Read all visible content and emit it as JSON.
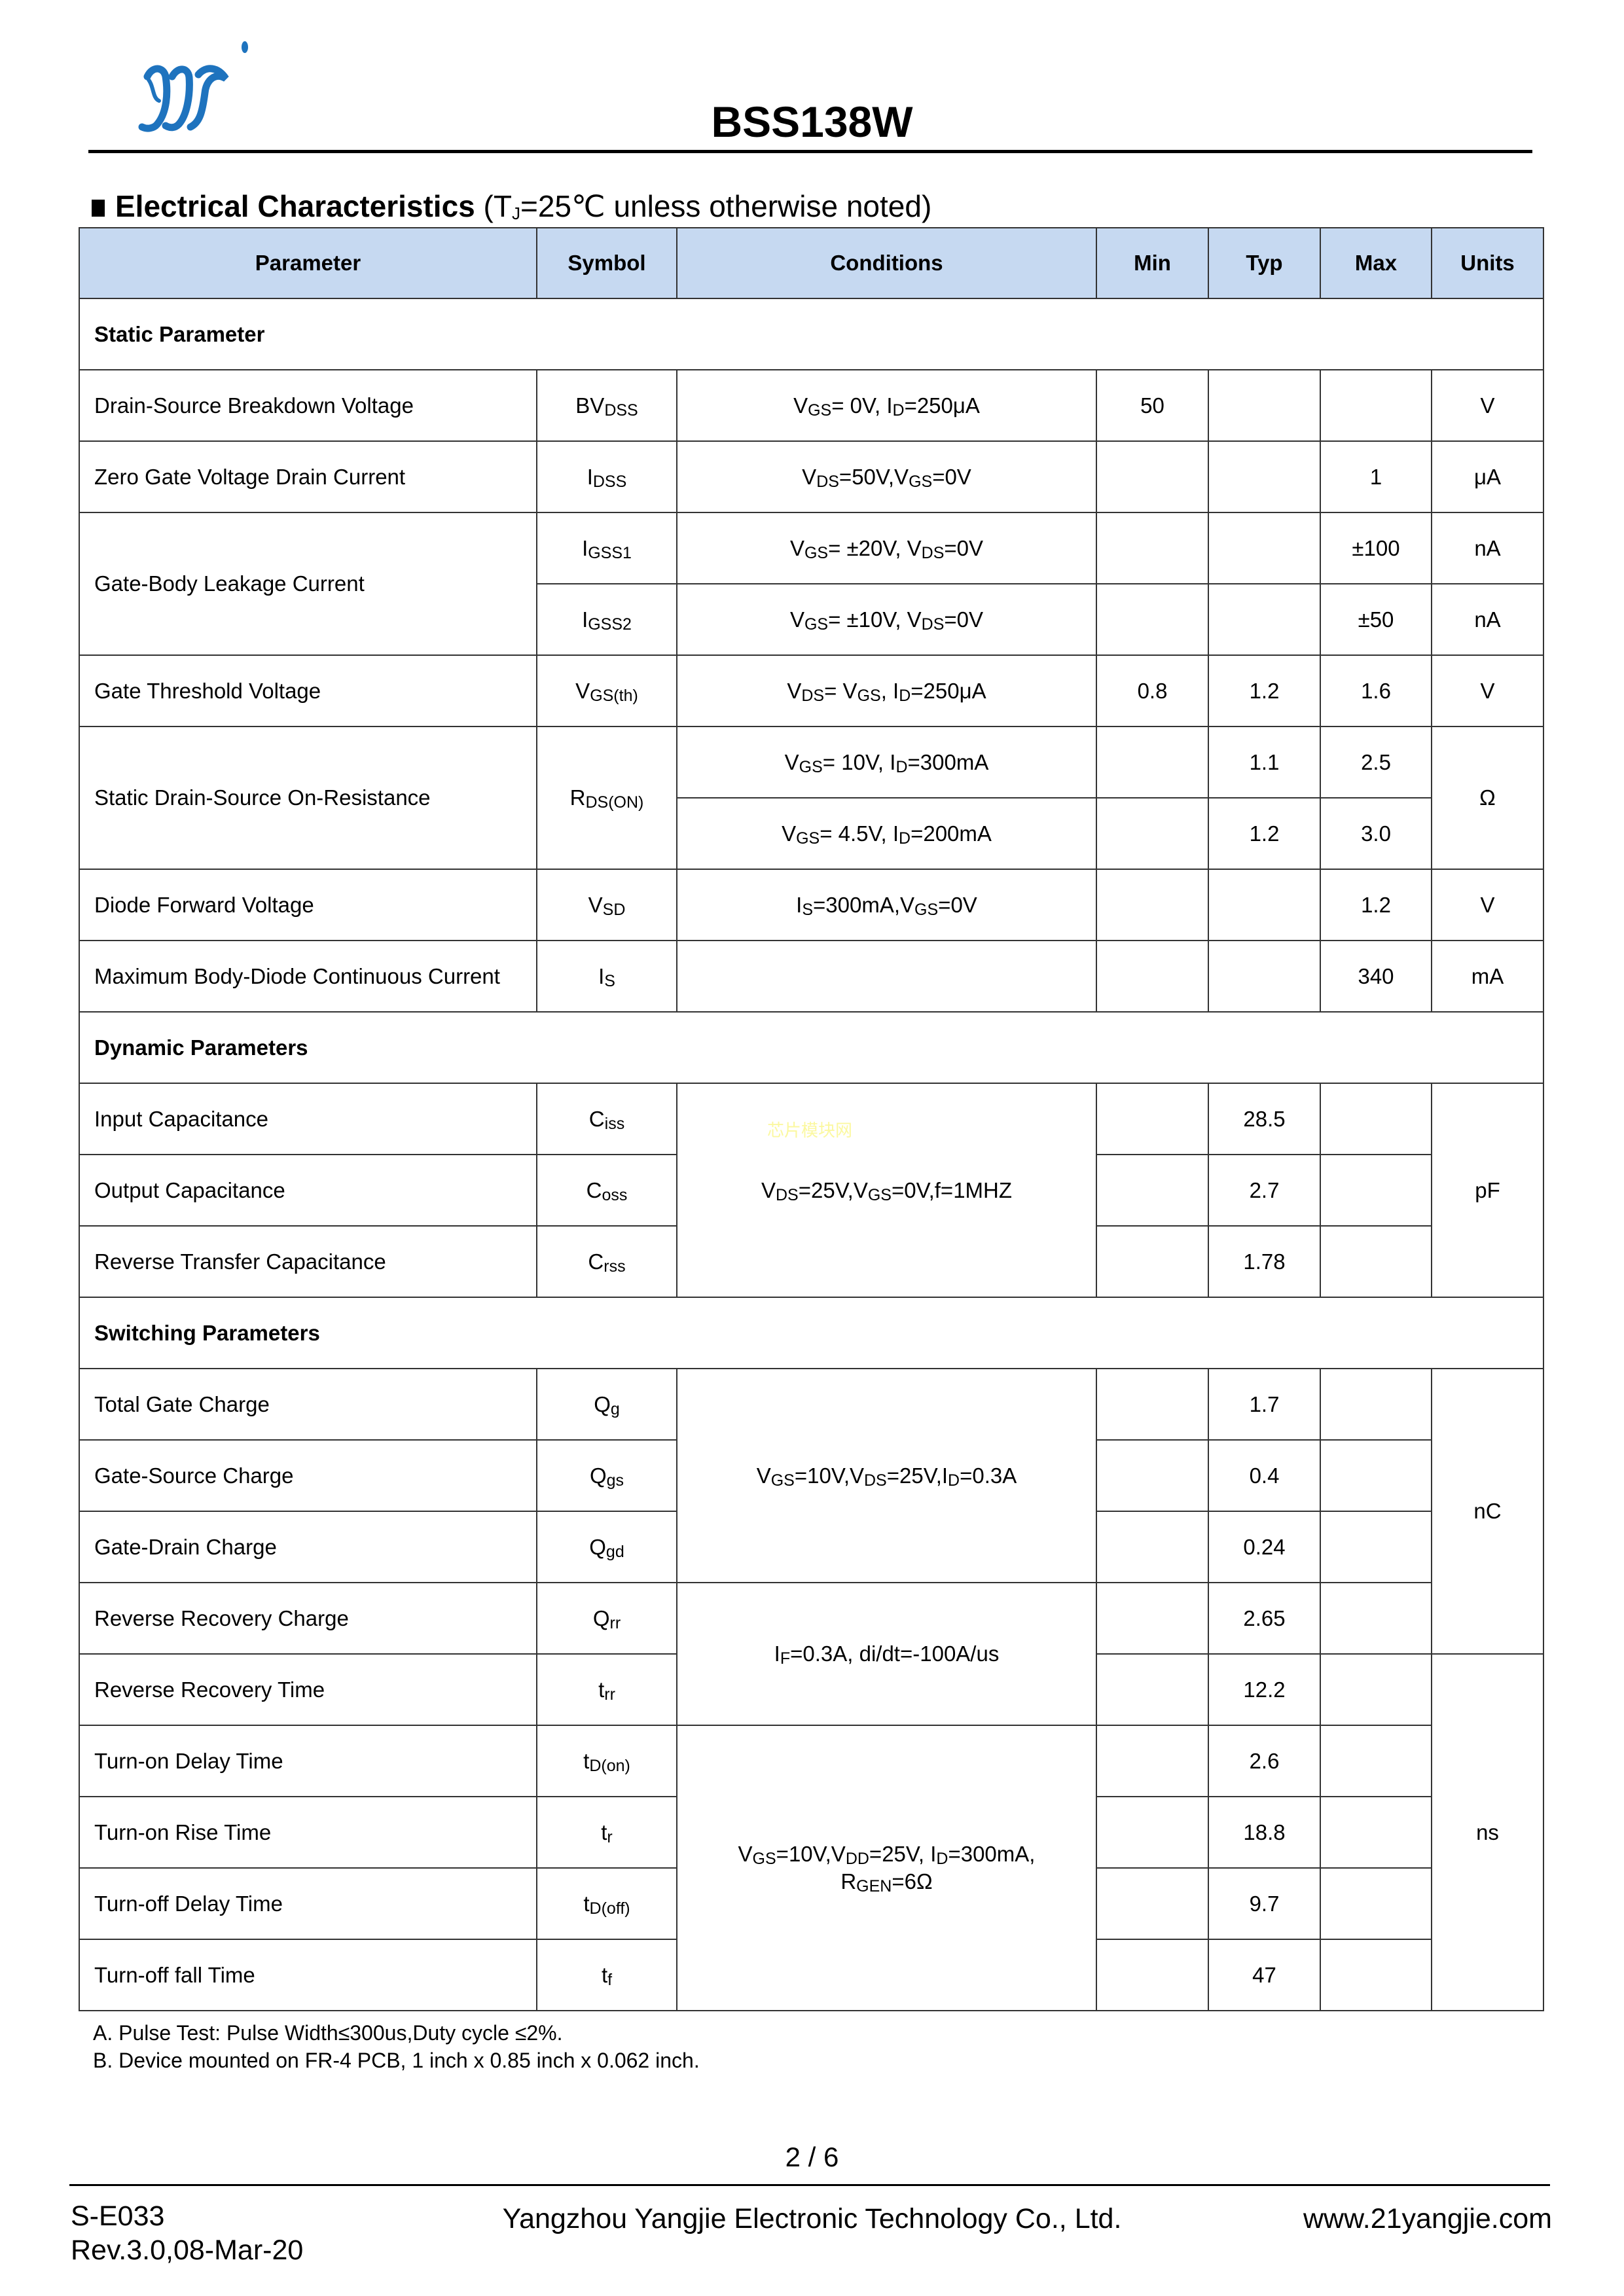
{
  "header": {
    "title": "BSS138W",
    "logo_text": "YJ",
    "brand_color": "#1E73BE"
  },
  "section": {
    "title": "Electrical Characteristics",
    "condition_prefix": "(T",
    "condition_sub": "J",
    "condition_suffix": "=25℃ unless otherwise noted)"
  },
  "table": {
    "header_bg": "#C6D9F1",
    "columns": [
      "Parameter",
      "Symbol",
      "Conditions",
      "Min",
      "Typ",
      "Max",
      "Units"
    ],
    "rows": [
      [
        {
          "t": "Static Parameter",
          "cs": 7,
          "k": "section"
        }
      ],
      [
        {
          "t": "Drain-Source Breakdown Voltage",
          "k": "param"
        },
        {
          "t": "BV_{DSS}"
        },
        {
          "t": "V_{GS}= 0V, I_{D}=250μA"
        },
        {
          "t": "50"
        },
        {
          "t": ""
        },
        {
          "t": ""
        },
        {
          "t": "V"
        }
      ],
      [
        {
          "t": "Zero Gate Voltage Drain Current",
          "k": "param"
        },
        {
          "t": "I_{DSS}"
        },
        {
          "t": "V_{DS}=50V,V_{GS}=0V"
        },
        {
          "t": ""
        },
        {
          "t": ""
        },
        {
          "t": "1"
        },
        {
          "t": "μA"
        }
      ],
      [
        {
          "t": "Gate-Body Leakage Current",
          "k": "param",
          "rs": 2
        },
        {
          "t": "I_{GSS1}"
        },
        {
          "t": "V_{GS}= ±20V, V_{DS}=0V"
        },
        {
          "t": ""
        },
        {
          "t": ""
        },
        {
          "t": "±100"
        },
        {
          "t": "nA"
        }
      ],
      [
        {
          "t": "I_{GSS2}"
        },
        {
          "t": "V_{GS}= ±10V, V_{DS}=0V"
        },
        {
          "t": ""
        },
        {
          "t": ""
        },
        {
          "t": "±50"
        },
        {
          "t": "nA"
        }
      ],
      [
        {
          "t": "Gate Threshold Voltage",
          "k": "param"
        },
        {
          "t": "V_{GS(th)}"
        },
        {
          "t": "V_{DS}= V_{GS}, I_{D}=250μA"
        },
        {
          "t": "0.8"
        },
        {
          "t": "1.2"
        },
        {
          "t": "1.6"
        },
        {
          "t": "V"
        }
      ],
      [
        {
          "t": "Static Drain-Source On-Resistance",
          "k": "param",
          "rs": 2
        },
        {
          "t": "R_{DS(ON)}",
          "rs": 2
        },
        {
          "t": "V_{GS}= 10V, I_{D}=300mA"
        },
        {
          "t": ""
        },
        {
          "t": "1.1"
        },
        {
          "t": "2.5"
        },
        {
          "t": "Ω",
          "rs": 2
        }
      ],
      [
        {
          "t": "V_{GS}= 4.5V, I_{D}=200mA"
        },
        {
          "t": ""
        },
        {
          "t": "1.2"
        },
        {
          "t": "3.0"
        }
      ],
      [
        {
          "t": "Diode Forward Voltage",
          "k": "param"
        },
        {
          "t": "V_{SD}"
        },
        {
          "t": "I_{S}=300mA,V_{GS}=0V"
        },
        {
          "t": ""
        },
        {
          "t": ""
        },
        {
          "t": "1.2"
        },
        {
          "t": "V"
        }
      ],
      [
        {
          "t": "Maximum Body-Diode Continuous Current",
          "k": "param"
        },
        {
          "t": "I_{S}"
        },
        {
          "t": ""
        },
        {
          "t": ""
        },
        {
          "t": ""
        },
        {
          "t": "340"
        },
        {
          "t": "mA"
        }
      ],
      [
        {
          "t": "Dynamic Parameters",
          "cs": 7,
          "k": "section"
        }
      ],
      [
        {
          "t": "Input Capacitance",
          "k": "param"
        },
        {
          "t": "C_{iss}"
        },
        {
          "t": "V_{DS}=25V,V_{GS}=0V,f=1MHZ",
          "rs": 3
        },
        {
          "t": ""
        },
        {
          "t": "28.5"
        },
        {
          "t": ""
        },
        {
          "t": "pF",
          "rs": 3
        }
      ],
      [
        {
          "t": "Output Capacitance",
          "k": "param"
        },
        {
          "t": "C_{oss}"
        },
        {
          "t": ""
        },
        {
          "t": "2.7"
        },
        {
          "t": ""
        }
      ],
      [
        {
          "t": "Reverse Transfer Capacitance",
          "k": "param"
        },
        {
          "t": "C_{rss}"
        },
        {
          "t": ""
        },
        {
          "t": "1.78"
        },
        {
          "t": ""
        }
      ],
      [
        {
          "t": "Switching Parameters",
          "cs": 7,
          "k": "section"
        }
      ],
      [
        {
          "t": "Total Gate Charge",
          "k": "param"
        },
        {
          "t": "Q_{g}"
        },
        {
          "t": "V_{GS}=10V,V_{DS}=25V,I_{D}=0.3A",
          "rs": 3
        },
        {
          "t": ""
        },
        {
          "t": "1.7"
        },
        {
          "t": ""
        },
        {
          "t": "nC",
          "rs": 4
        }
      ],
      [
        {
          "t": "Gate-Source Charge",
          "k": "param"
        },
        {
          "t": "Q_{gs}"
        },
        {
          "t": ""
        },
        {
          "t": "0.4"
        },
        {
          "t": ""
        }
      ],
      [
        {
          "t": "Gate-Drain Charge",
          "k": "param"
        },
        {
          "t": "Q_{gd}"
        },
        {
          "t": ""
        },
        {
          "t": "0.24"
        },
        {
          "t": ""
        }
      ],
      [
        {
          "t": "Reverse Recovery Charge",
          "k": "param"
        },
        {
          "t": "Q_{rr}"
        },
        {
          "t": "I_{F}=0.3A, di/dt=-100A/us",
          "rs": 2
        },
        {
          "t": ""
        },
        {
          "t": "2.65"
        },
        {
          "t": ""
        }
      ],
      [
        {
          "t": "Reverse Recovery Time",
          "k": "param"
        },
        {
          "t": "t_{rr}"
        },
        {
          "t": ""
        },
        {
          "t": "12.2"
        },
        {
          "t": ""
        },
        {
          "t": "ns",
          "rs": 5
        }
      ],
      [
        {
          "t": "Turn-on Delay Time",
          "k": "param"
        },
        {
          "t": "t_{D(on)}"
        },
        {
          "t": "V_{GS}=10V,V_{DD}=25V, I_{D}=300mA,\nR_{GEN}=6Ω",
          "rs": 4
        },
        {
          "t": ""
        },
        {
          "t": "2.6"
        },
        {
          "t": ""
        }
      ],
      [
        {
          "t": "Turn-on Rise Time",
          "k": "param"
        },
        {
          "t": "t_{r}"
        },
        {
          "t": ""
        },
        {
          "t": "18.8"
        },
        {
          "t": ""
        }
      ],
      [
        {
          "t": "Turn-off Delay Time",
          "k": "param"
        },
        {
          "t": "t_{D(off)}"
        },
        {
          "t": ""
        },
        {
          "t": "9.7"
        },
        {
          "t": ""
        }
      ],
      [
        {
          "t": "Turn-off fall Time",
          "k": "param"
        },
        {
          "t": "t_{f}"
        },
        {
          "t": ""
        },
        {
          "t": "47"
        },
        {
          "t": ""
        }
      ]
    ]
  },
  "watermark": "芯片模块网",
  "notes": [
    "A. Pulse Test: Pulse Width≤300us,Duty cycle ≤2%.",
    "B. Device mounted on FR-4 PCB, 1 inch x 0.85 inch x 0.062 inch."
  ],
  "page_number": "2 / 6",
  "footer": {
    "doc_code": "S-E033",
    "revision": "Rev.3.0,08-Mar-20",
    "company": "Yangzhou Yangjie Electronic Technology Co., Ltd.",
    "website": "www.21yangjie.com"
  }
}
